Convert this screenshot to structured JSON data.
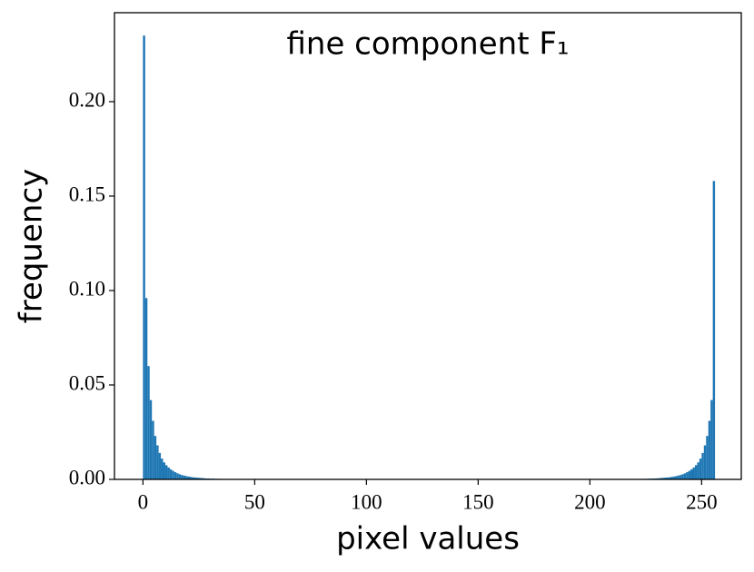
{
  "chart_data": {
    "type": "histogram",
    "title": "fine component F₁",
    "x_label": "pixel values",
    "y_label": "frequency",
    "color": "#1f77b4",
    "bins": [
      0,
      1,
      2,
      3,
      4,
      5,
      6,
      7,
      8,
      9,
      10,
      11,
      12,
      13,
      14,
      15,
      16,
      17,
      18,
      19,
      20,
      21,
      22,
      23,
      24,
      25,
      26,
      27,
      28,
      29,
      30,
      31,
      32,
      33,
      34,
      35,
      36,
      37,
      38,
      39,
      40,
      41,
      42,
      43,
      44,
      45,
      46,
      47,
      48,
      49,
      50,
      51,
      52,
      53,
      54,
      55,
      56,
      57,
      58,
      59,
      60,
      61,
      62,
      63,
      64,
      65,
      66,
      67,
      68,
      69,
      70,
      71,
      72,
      73,
      74,
      75,
      76,
      77,
      78,
      79,
      80,
      81,
      82,
      83,
      84,
      85,
      86,
      87,
      88,
      89,
      90,
      91,
      92,
      93,
      94,
      95,
      96,
      97,
      98,
      99,
      100,
      101,
      102,
      103,
      104,
      105,
      106,
      107,
      108,
      109,
      110,
      111,
      112,
      113,
      114,
      115,
      116,
      117,
      118,
      119,
      120,
      121,
      122,
      123,
      124,
      125,
      126,
      127,
      128,
      129,
      130,
      131,
      132,
      133,
      134,
      135,
      136,
      137,
      138,
      139,
      140,
      141,
      142,
      143,
      144,
      145,
      146,
      147,
      148,
      149,
      150,
      151,
      152,
      153,
      154,
      155,
      156,
      157,
      158,
      159,
      160,
      161,
      162,
      163,
      164,
      165,
      166,
      167,
      168,
      169,
      170,
      171,
      172,
      173,
      174,
      175,
      176,
      177,
      178,
      179,
      180,
      181,
      182,
      183,
      184,
      185,
      186,
      187,
      188,
      189,
      190,
      191,
      192,
      193,
      194,
      195,
      196,
      197,
      198,
      199,
      200,
      201,
      202,
      203,
      204,
      205,
      206,
      207,
      208,
      209,
      210,
      211,
      212,
      213,
      214,
      215,
      216,
      217,
      218,
      219,
      220,
      221,
      222,
      223,
      224,
      225,
      226,
      227,
      228,
      229,
      230,
      231,
      232,
      233,
      234,
      235,
      236,
      237,
      238,
      239,
      240,
      241,
      242,
      243,
      244,
      245,
      246,
      247,
      248,
      249,
      250,
      251,
      252,
      253,
      254,
      255,
      256
    ],
    "values": [
      0.235,
      0.096,
      0.06,
      0.042,
      0.031,
      0.023,
      0.018,
      0.014,
      0.011,
      0.009,
      0.0075,
      0.0063,
      0.0053,
      0.0045,
      0.0038,
      0.0032,
      0.0027,
      0.0023,
      0.002,
      0.0017,
      0.0015,
      0.0013,
      0.0011,
      0.001,
      0.0009,
      0.0008,
      0.0007,
      0.0006,
      0.0005,
      0.0005,
      0.0004,
      0.0004,
      0.0003,
      0.0003,
      0.0003,
      0.0002,
      0.0002,
      0.0002,
      0.0002,
      0.0001,
      0.0001,
      0.0001,
      0.0001,
      0.0001,
      0.0001,
      0.0001,
      0.0001,
      0.0001,
      0.0001,
      0.0001,
      0.0001,
      0.0001,
      0.0001,
      0.0001,
      0.0001,
      0.0001,
      0.0001,
      0.0001,
      0.0001,
      0.0001,
      0,
      0,
      0,
      0,
      0,
      0,
      0,
      0,
      0,
      0,
      0,
      0,
      0,
      0,
      0,
      0,
      0,
      0,
      0,
      0,
      0,
      0,
      0,
      0,
      0,
      0,
      0,
      0,
      0,
      0,
      0,
      0,
      0,
      0,
      0,
      0,
      0,
      0,
      0,
      0,
      0,
      0,
      0,
      0,
      0,
      0,
      0,
      0,
      0,
      0,
      0,
      0,
      0,
      0,
      0,
      0,
      0,
      0,
      0,
      0,
      0,
      0,
      0,
      0,
      0,
      0,
      0,
      0,
      0,
      0,
      0,
      0,
      0,
      0,
      0,
      0,
      0,
      0,
      0,
      0,
      0,
      0,
      0,
      0,
      0,
      0,
      0,
      0,
      0,
      0,
      0,
      0,
      0,
      0,
      0,
      0,
      0,
      0,
      0,
      0,
      0,
      0,
      0,
      0,
      0,
      0,
      0,
      0,
      0,
      0,
      0,
      0,
      0,
      0,
      0,
      0,
      0,
      0,
      0,
      0,
      0,
      0,
      0,
      0,
      0,
      0,
      0,
      0,
      0,
      0,
      0,
      0,
      0,
      0,
      0,
      0,
      0,
      0,
      0,
      0,
      0.0001,
      0.0001,
      0.0001,
      0.0001,
      0.0001,
      0.0001,
      0.0001,
      0.0001,
      0.0001,
      0.0001,
      0.0001,
      0.0001,
      0.0001,
      0.0001,
      0.0001,
      0.0001,
      0.0001,
      0.0001,
      0.0001,
      0.0002,
      0.0002,
      0.0002,
      0.0002,
      0.0003,
      0.0003,
      0.0003,
      0.0004,
      0.0004,
      0.0005,
      0.0005,
      0.0006,
      0.0007,
      0.0008,
      0.0009,
      0.001,
      0.0011,
      0.0013,
      0.0015,
      0.0017,
      0.002,
      0.0023,
      0.0027,
      0.0032,
      0.0038,
      0.0045,
      0.0053,
      0.0063,
      0.0075,
      0.009,
      0.011,
      0.014,
      0.018,
      0.023,
      0.031,
      0.042,
      0.158
    ],
    "xlim": [
      -12.75,
      267.75
    ],
    "xticks": [
      0,
      50,
      100,
      150,
      200,
      250
    ],
    "ylim": [
      0,
      0.2471
    ],
    "yticks": [
      {
        "value": 0,
        "label": "0.00"
      },
      {
        "value": 0.05,
        "label": "0.05"
      },
      {
        "value": 0.1,
        "label": "0.10"
      },
      {
        "value": 0.15,
        "label": "0.15"
      },
      {
        "value": 0.2,
        "label": "0.20"
      }
    ]
  }
}
